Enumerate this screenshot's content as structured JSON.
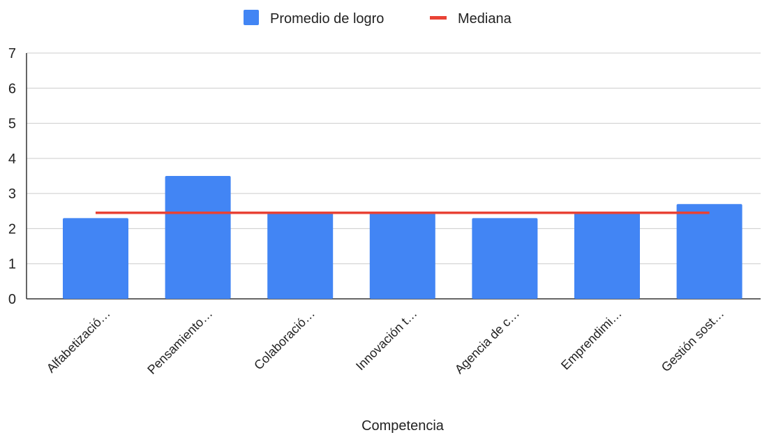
{
  "chart_data": {
    "type": "bar",
    "categories": [
      "Alfabetizació…",
      "Pensamiento…",
      "Colaboració…",
      "Innovación t…",
      "Agencia de c…",
      "Emprendimi…",
      "Gestión sost…"
    ],
    "series": [
      {
        "name": "Promedio de logro",
        "type": "bar",
        "color": "#4285f4",
        "values": [
          2.3,
          3.5,
          2.45,
          2.45,
          2.3,
          2.45,
          2.7
        ]
      },
      {
        "name": "Mediana",
        "type": "line",
        "color": "#e94235",
        "values": [
          2.45,
          2.45,
          2.45,
          2.45,
          2.45,
          2.45,
          2.45
        ]
      }
    ],
    "xlabel": "Competencia",
    "ylabel": "",
    "ylim": [
      0,
      7
    ],
    "yticks": [
      0,
      1,
      2,
      3,
      4,
      5,
      6,
      7
    ],
    "grid": true,
    "legend": "top-center"
  }
}
